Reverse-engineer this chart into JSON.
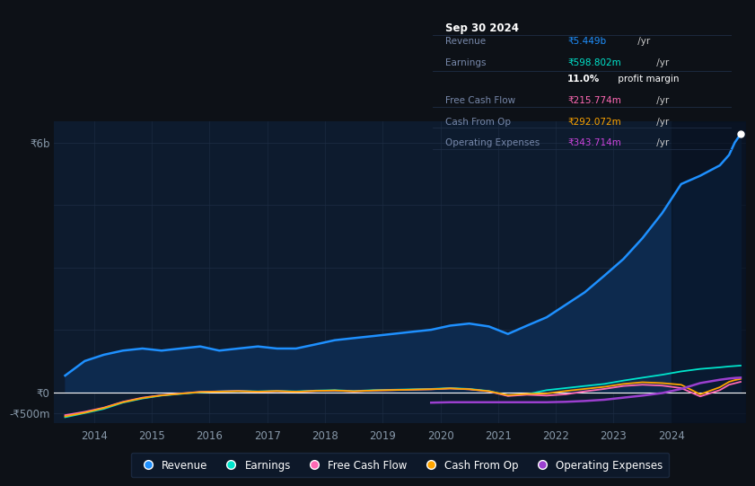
{
  "bg_color": "#0d1117",
  "chart_bg": "#0d1b2e",
  "grid_color": "#1e2d45",
  "zero_line_color": "#ffffff",
  "revenue_color": "#1e90ff",
  "earnings_color": "#00e5cc",
  "fcf_color": "#ff69b4",
  "cashop_color": "#ffa500",
  "opex_color": "#9b3fcf",
  "revenue_fill_color": "#0d2a4e",
  "ytick_labels": [
    "-₹500m",
    "₹0",
    "₹6b"
  ],
  "ytick_vals": [
    -500000000,
    0,
    6000000000
  ],
  "ylim": [
    -750000000,
    6500000000
  ],
  "xlim_start": 2013.3,
  "xlim_end": 2025.3,
  "year_ticks": [
    2014,
    2015,
    2016,
    2017,
    2018,
    2019,
    2020,
    2021,
    2022,
    2023,
    2024
  ],
  "info_box_title": "Sep 30 2024",
  "info_rows": [
    {
      "label": "Revenue",
      "value": "₹5.449b",
      "suffix": " /yr",
      "color": "#1e90ff",
      "bold_val": false
    },
    {
      "label": "Earnings",
      "value": "₹598.802m",
      "suffix": " /yr",
      "color": "#00e5cc",
      "bold_val": false
    },
    {
      "label": "",
      "value": "11.0%",
      "suffix": " profit margin",
      "color": "#ffffff",
      "bold_val": true
    },
    {
      "label": "Free Cash Flow",
      "value": "₹215.774m",
      "suffix": " /yr",
      "color": "#ff69b4",
      "bold_val": false
    },
    {
      "label": "Cash From Op",
      "value": "₹292.072m",
      "suffix": " /yr",
      "color": "#ffa500",
      "bold_val": false
    },
    {
      "label": "Operating Expenses",
      "value": "₹343.714m",
      "suffix": " /yr",
      "color": "#cc44dd",
      "bold_val": false
    }
  ],
  "legend_items": [
    {
      "label": "Revenue",
      "color": "#1e90ff"
    },
    {
      "label": "Earnings",
      "color": "#00e5cc"
    },
    {
      "label": "Free Cash Flow",
      "color": "#ff69b4"
    },
    {
      "label": "Cash From Op",
      "color": "#ffa500"
    },
    {
      "label": "Operating Expenses",
      "color": "#9b3fcf"
    }
  ],
  "x_years": [
    2013.5,
    2013.84,
    2014.17,
    2014.5,
    2014.84,
    2015.17,
    2015.5,
    2015.84,
    2016.17,
    2016.5,
    2016.84,
    2017.17,
    2017.5,
    2017.84,
    2018.17,
    2018.5,
    2018.84,
    2019.17,
    2019.5,
    2019.84,
    2020.17,
    2020.5,
    2020.84,
    2021.17,
    2021.5,
    2021.84,
    2022.17,
    2022.5,
    2022.84,
    2023.17,
    2023.5,
    2023.84,
    2024.17,
    2024.5,
    2024.84,
    2025.0,
    2025.1,
    2025.2
  ],
  "revenue": [
    400000000,
    750000000,
    900000000,
    1000000000,
    1050000000,
    1000000000,
    1050000000,
    1100000000,
    1000000000,
    1050000000,
    1100000000,
    1050000000,
    1050000000,
    1150000000,
    1250000000,
    1300000000,
    1350000000,
    1400000000,
    1450000000,
    1500000000,
    1600000000,
    1650000000,
    1580000000,
    1400000000,
    1600000000,
    1800000000,
    2100000000,
    2400000000,
    2800000000,
    3200000000,
    3700000000,
    4300000000,
    5000000000,
    5200000000,
    5449000000,
    5700000000,
    6000000000,
    6200000000
  ],
  "earnings": [
    -600000000,
    -500000000,
    -400000000,
    -250000000,
    -150000000,
    -80000000,
    -40000000,
    0,
    20000000,
    30000000,
    20000000,
    30000000,
    20000000,
    40000000,
    50000000,
    30000000,
    50000000,
    60000000,
    70000000,
    80000000,
    100000000,
    80000000,
    30000000,
    -80000000,
    -50000000,
    50000000,
    100000000,
    150000000,
    200000000,
    280000000,
    350000000,
    420000000,
    500000000,
    560000000,
    598000000,
    620000000,
    630000000,
    640000000
  ],
  "fcf": [
    -550000000,
    -470000000,
    -370000000,
    -230000000,
    -130000000,
    -70000000,
    -30000000,
    10000000,
    20000000,
    30000000,
    10000000,
    25000000,
    10000000,
    30000000,
    40000000,
    20000000,
    40000000,
    50000000,
    60000000,
    70000000,
    90000000,
    70000000,
    20000000,
    -90000000,
    -60000000,
    -80000000,
    -50000000,
    20000000,
    80000000,
    150000000,
    180000000,
    160000000,
    100000000,
    -100000000,
    50000000,
    180000000,
    215000000,
    250000000
  ],
  "cashop": [
    -580000000,
    -490000000,
    -380000000,
    -240000000,
    -140000000,
    -75000000,
    -35000000,
    5000000,
    15000000,
    25000000,
    15000000,
    28000000,
    12000000,
    32000000,
    42000000,
    22000000,
    42000000,
    52000000,
    62000000,
    72000000,
    92000000,
    72000000,
    25000000,
    -70000000,
    -40000000,
    -30000000,
    30000000,
    80000000,
    130000000,
    200000000,
    240000000,
    220000000,
    180000000,
    -50000000,
    120000000,
    250000000,
    292000000,
    320000000
  ],
  "opex_x": [
    2019.84,
    2020.17,
    2020.5,
    2020.84,
    2021.17,
    2021.5,
    2021.84,
    2022.17,
    2022.5,
    2022.84,
    2023.17,
    2023.5,
    2023.84,
    2024.17,
    2024.5,
    2024.84,
    2025.0,
    2025.1,
    2025.2
  ],
  "opex_y": [
    -250000000,
    -240000000,
    -240000000,
    -240000000,
    -240000000,
    -240000000,
    -240000000,
    -230000000,
    -210000000,
    -180000000,
    -130000000,
    -80000000,
    -20000000,
    80000000,
    220000000,
    300000000,
    330000000,
    343000000,
    350000000
  ],
  "hover_x_start": 2024.0,
  "dot_x": 2025.2,
  "dot_y": 6200000000
}
